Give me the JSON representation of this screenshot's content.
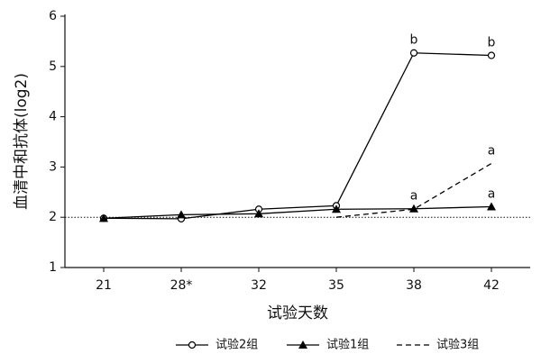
{
  "chart_data": {
    "type": "line",
    "y_label": "血清中和抗体(log2)",
    "x_label": "试验天数",
    "categories": [
      "21",
      "28*",
      "32",
      "35",
      "38",
      "42"
    ],
    "ylim": [
      1,
      6
    ],
    "yticks": [
      1,
      2,
      3,
      4,
      5,
      6
    ],
    "reference_line": 2,
    "series": [
      {
        "name": "试验2组",
        "color": "#000000",
        "marker": "open-circle",
        "dash": false,
        "values": [
          1.98,
          1.97,
          2.16,
          2.23,
          5.27,
          5.22
        ],
        "point_labels": [
          null,
          null,
          null,
          null,
          "b",
          "b"
        ]
      },
      {
        "name": "试验1组",
        "color": "#000000",
        "marker": "filled-triangle",
        "dash": false,
        "values": [
          1.98,
          2.05,
          2.07,
          2.16,
          2.17,
          2.21
        ],
        "point_labels": [
          null,
          null,
          null,
          null,
          "a",
          "a"
        ]
      },
      {
        "name": "试验3组",
        "color": "#000000",
        "marker": "none",
        "dash": true,
        "values": [
          null,
          null,
          null,
          2.0,
          2.16,
          3.07
        ],
        "point_labels": [
          null,
          null,
          null,
          null,
          null,
          "a"
        ]
      }
    ],
    "legend": "bottom"
  }
}
